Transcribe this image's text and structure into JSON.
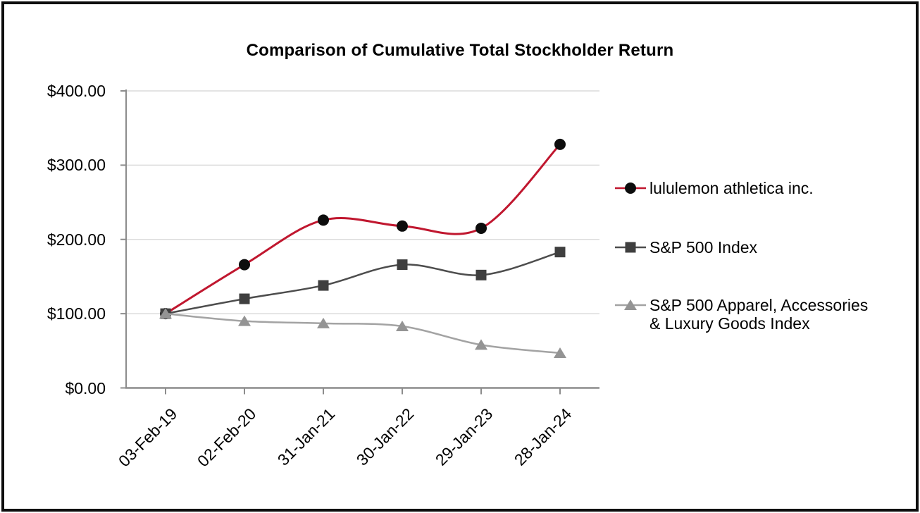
{
  "frame": {
    "border_color": "#0d0d0d",
    "background_color": "#ffffff"
  },
  "colors": {
    "gridline": "#dcdcdc",
    "axis": "#8c8c8c",
    "text": "#000000"
  },
  "chart_data": {
    "type": "line",
    "title": "Comparison of Cumulative Total Stockholder Return",
    "categories": [
      "03-Feb-19",
      "02-Feb-20",
      "31-Jan-21",
      "30-Jan-22",
      "29-Jan-23",
      "28-Jan-24"
    ],
    "series": [
      {
        "name": "lululemon athletica inc.",
        "values": [
          100,
          166,
          226,
          218,
          215,
          328
        ],
        "line_color": "#c0172f",
        "line_width": 3,
        "marker": "circle",
        "marker_color": "#0d0d0d"
      },
      {
        "name": "S&P 500 Index",
        "values": [
          100,
          120,
          138,
          166,
          152,
          183
        ],
        "line_color": "#4d4d4d",
        "line_width": 2.5,
        "marker": "square",
        "marker_color": "#3f3f3f"
      },
      {
        "name": "S&P 500 Apparel, Accessories & Luxury Goods Index",
        "values": [
          100,
          90,
          87,
          83,
          58,
          47
        ],
        "line_color": "#a3a3a3",
        "line_width": 2.5,
        "marker": "triangle",
        "marker_color": "#949494"
      }
    ],
    "y_axis": {
      "tick_labels": [
        "$400.00",
        "$300.00",
        "$200.00",
        "$100.00",
        "$0.00"
      ],
      "tick_values": [
        400,
        300,
        200,
        100,
        0
      ],
      "min": 0,
      "max": 400
    },
    "x_axis": {
      "label_rotation_deg": -45
    },
    "smoothed": true,
    "grid": true,
    "legend_position": "right"
  }
}
